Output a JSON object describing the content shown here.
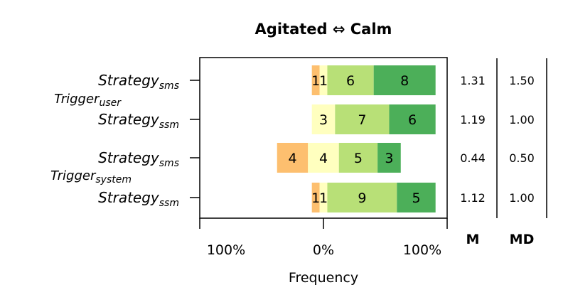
{
  "chart_data": {
    "type": "bar",
    "subtype": "diverging-stacked-likert",
    "title": "Agitated ⇔ Calm",
    "xlabel": "Frequency",
    "xticks": [
      "100%",
      "0%",
      "100%"
    ],
    "xlim": [
      -100,
      100
    ],
    "groups": [
      {
        "label": "Trigger",
        "sub": "user",
        "rows": [
          0,
          1
        ]
      },
      {
        "label": "Trigger",
        "sub": "system",
        "rows": [
          2,
          3
        ]
      }
    ],
    "categories": [
      {
        "label": "Strategy",
        "sub": "sms"
      },
      {
        "label": "Strategy",
        "sub": "ssm"
      },
      {
        "label": "Strategy",
        "sub": "sms"
      },
      {
        "label": "Strategy",
        "sub": "ssm"
      }
    ],
    "levels": [
      "-2",
      "-1",
      "0",
      "1",
      "2"
    ],
    "level_colors": [
      "#d7191c",
      "#fdbf6f",
      "#ffffbf",
      "#b8e077",
      "#4caf59"
    ],
    "counts": [
      [
        0,
        1,
        1,
        6,
        8
      ],
      [
        0,
        0,
        3,
        7,
        6
      ],
      [
        0,
        4,
        4,
        5,
        3
      ],
      [
        0,
        1,
        1,
        9,
        5
      ]
    ],
    "stats_headers": {
      "mean": "M",
      "median": "MD"
    },
    "mean": [
      "1.31",
      "1.19",
      "0.44",
      "1.12"
    ],
    "median": [
      "1.50",
      "1.00",
      "0.50",
      "1.00"
    ]
  }
}
